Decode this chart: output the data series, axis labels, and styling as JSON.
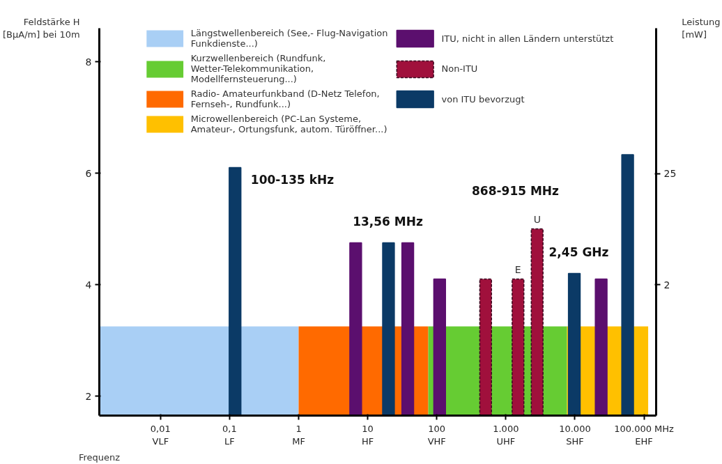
{
  "chart_data": {
    "type": "bar",
    "xlabel": "Frequenz",
    "ylabel": "Feldstärke H [BμA/m] bei 10m",
    "y2label": "Leistung [mW]",
    "log": "x",
    "xlim": [
      0.0013,
      150000
    ],
    "ylim": [
      1.65,
      8.6
    ],
    "y2lim": [
      -25,
      55
    ],
    "xticks": [
      {
        "value": 0.01,
        "label": "0,01\nVLF"
      },
      {
        "value": 0.1,
        "label": "0,1\nLF"
      },
      {
        "value": 1,
        "label": "1\nMF"
      },
      {
        "value": 10,
        "label": "10\nHF"
      },
      {
        "value": 100,
        "label": "100\nVHF"
      },
      {
        "value": 1000,
        "label": "1.000\nUHF"
      },
      {
        "value": 10000,
        "label": "10.000\nSHF"
      },
      {
        "value": 100000,
        "label": "100.000 MHz\nEHF"
      }
    ],
    "yticks": [
      2,
      4,
      6,
      8
    ],
    "y2ticks": [
      2,
      25
    ],
    "grid": false,
    "legend": "top",
    "series": [
      {
        "type": "area",
        "name": "Längstwellenbereich (See,- Flug-Navigation Funkdienste...)",
        "color": "#a9cff5",
        "x": [
          0.0013,
          1
        ],
        "values": [
          3.25,
          3.25
        ]
      },
      {
        "type": "area",
        "name": "Kurzwellenbereich (Rundfunk, Wetter-Telekommunikation, Modellfernsteuerung...)",
        "color": "#66cc33",
        "x": [
          75,
          7700
        ],
        "values": [
          3.25,
          3.25
        ]
      },
      {
        "type": "area",
        "name": "Radio- Amateurfunkband (D-Netz Telefon, Fernseh-, Rundfunk...)",
        "color": "#ff6a00",
        "x": [
          1,
          75
        ],
        "values": [
          3.25,
          3.25
        ]
      },
      {
        "type": "area",
        "name": "Microwellenbereich (PC-Lan Systeme, Amateur-, Ortungsfunk, autom. Türöffner...)",
        "color": "#ffc000",
        "x": [
          7700,
          115000
        ],
        "values": [
          3.25,
          3.25
        ]
      },
      {
        "name": "ITU, nicht in allen Ländern unterstützt",
        "color": "#5b0f6e",
        "x": [
          6.7,
          38,
          110,
          24000
        ],
        "values": [
          4.75,
          4.75,
          4.1,
          4.1
        ]
      },
      {
        "name": "Non-ITU",
        "color": "#a0103c",
        "line_style": "dashed",
        "x": [
          510,
          1500,
          2840
        ],
        "values": [
          4.1,
          4.1,
          5.0
        ]
      },
      {
        "name": "von ITU bevorzugt",
        "color": "#0b3a66",
        "x": [
          0.12,
          20,
          9800,
          58000
        ],
        "values": [
          6.1,
          4.75,
          4.2,
          6.33
        ]
      }
    ],
    "annotations": [
      "100-135 kHz",
      "13,56 MHz",
      "868-915 MHz",
      "2,45 GHz",
      {
        "text": "E",
        "x": 1500,
        "y": 4.1
      },
      {
        "text": "U",
        "x": 2840,
        "y": 5.0
      }
    ]
  }
}
